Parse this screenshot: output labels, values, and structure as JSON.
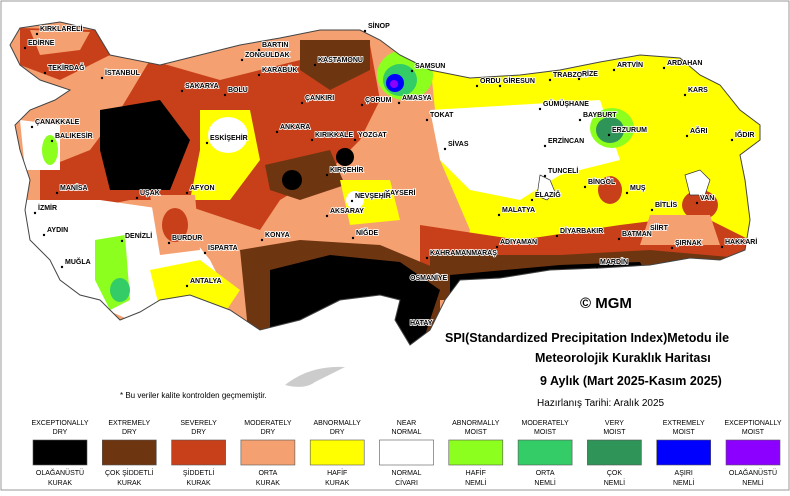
{
  "title_lines": [
    "SPI(Standardized Precipitation Index)Metodu ile",
    "Meteorolojik Kuraklık Haritası",
    "9 Aylık (Mart 2025-Kasım 2025)"
  ],
  "date": "Hazırlanış Tarihi: Aralık 2025",
  "copyright": "© MGM",
  "note": "* Bu veriler kalite kontrolden geçmemiştir.",
  "cities": [
    "KIRKLARELİ",
    "EDİRNE",
    "TEKİRDAĞ",
    "İSTANBUL",
    "SAKARYA",
    "BOLU",
    "ZONGULDAK",
    "BARTIN",
    "KARABÜK",
    "KASTAMONU",
    "SİNOP",
    "SAMSUN",
    "ÇORUM",
    "AMASYA",
    "ORDU",
    "GİRESUN",
    "TRABZON",
    "RİZE",
    "ARTVİN",
    "ARDAHAN",
    "KARS",
    "GÜMÜŞHANE",
    "BAYBURT",
    "ERZURUM",
    "AĞRI",
    "IĞDIR",
    "TOKAT",
    "ÇANKIRI",
    "ANKARA",
    "KIRIKKALE",
    "YOZGAT",
    "SİVAS",
    "ERZİNCAN",
    "TUNCELİ",
    "BİNGÖL",
    "MUŞ",
    "BİTLİS",
    "VAN",
    "HAKKARİ",
    "ŞIRNAK",
    "SİİRT",
    "BATMAN",
    "MARDİN",
    "DİYARBAKIR",
    "ELAZIĞ",
    "MALATYA",
    "ADIYAMAN",
    "KAHRAMANMARAŞ",
    "OSMANİYE",
    "HATAY",
    "KAYSERİ",
    "NEVŞEHİR",
    "KIRŞEHİR",
    "AKSARAY",
    "NİĞDE",
    "KONYA",
    "ANTALYA",
    "ISPARTA",
    "BURDUR",
    "AFYON",
    "UŞAK",
    "ESKİŞEHİR",
    "BALIKESİR",
    "ÇANAKKALE",
    "MANİSA",
    "İZMİR",
    "AYDIN",
    "MUĞLA",
    "DENİZLİ"
  ],
  "legend": [
    {
      "en": [
        "EXCEPTIONALLY",
        "DRY"
      ],
      "tr": [
        "OLAĞANÜSTÜ",
        "KURAK"
      ],
      "color": "#000000"
    },
    {
      "en": [
        "EXTREMELY",
        "DRY"
      ],
      "tr": [
        "ÇOK ŞİDDETLİ",
        "KURAK"
      ],
      "color": "#6e3511"
    },
    {
      "en": [
        "SEVERELY",
        "DRY"
      ],
      "tr": [
        "ŞİDDETLİ",
        "KURAK"
      ],
      "color": "#c8401a"
    },
    {
      "en": [
        "MODERATELY",
        "DRY"
      ],
      "tr": [
        "ORTA",
        "KURAK"
      ],
      "color": "#f4a070"
    },
    {
      "en": [
        "ABNORMALLY",
        "DRY"
      ],
      "tr": [
        "HAFİF",
        "KURAK"
      ],
      "color": "#ffff00"
    },
    {
      "en": [
        "NEAR",
        "NORMAL"
      ],
      "tr": [
        "NORMAL",
        "CİVARI"
      ],
      "color": "#ffffff"
    },
    {
      "en": [
        "ABNORMALLY",
        "MOIST"
      ],
      "tr": [
        "HAFİF",
        "NEMLİ"
      ],
      "color": "#8cff1e"
    },
    {
      "en": [
        "MODERATELY",
        "MOIST"
      ],
      "tr": [
        "ORTA",
        "NEMLİ"
      ],
      "color": "#33cc66"
    },
    {
      "en": [
        "VERY",
        "MOIST"
      ],
      "tr": [
        "ÇOK",
        "NEMLİ"
      ],
      "color": "#2e9458"
    },
    {
      "en": [
        "EXTREMELY",
        "MOIST"
      ],
      "tr": [
        "AŞIRI",
        "NEMLİ"
      ],
      "color": "#0000ff"
    },
    {
      "en": [
        "EXCEPTIONALLY",
        "MOIST"
      ],
      "tr": [
        "OLAĞANÜSTÜ",
        "NEMLİ"
      ],
      "color": "#8b00ff"
    }
  ]
}
